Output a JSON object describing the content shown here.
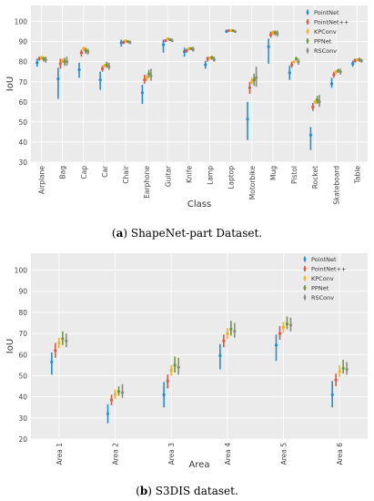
{
  "colors": {
    "background": "#ebebeb",
    "grid": "#ffffff",
    "PointNet": "#1f8fd6",
    "PointNet++": "#e8553e",
    "KPConv": "#f6b417",
    "PPNet": "#6a9a3a",
    "RSConv": "#8a8a8a"
  },
  "captions": [
    {
      "label": "a",
      "text": " ShapeNet-part Dataset."
    },
    {
      "label": "b",
      "text": " S3DIS dataset."
    }
  ],
  "chart_data": [
    {
      "type": "scatter",
      "title": "",
      "xlabel": "Class",
      "ylabel": "IoU",
      "ylim": [
        30,
        108
      ],
      "yticks": [
        30,
        40,
        50,
        60,
        70,
        80,
        90,
        100
      ],
      "grid": true,
      "legend_placement": "top-right",
      "categories": [
        "Airplane",
        "Bag",
        "Cap",
        "Car",
        "Chair",
        "Earphone",
        "Guitar",
        "Knife",
        "Lamp",
        "Laptop",
        "Motorbike",
        "Mug",
        "Pistol",
        "Rocket",
        "Skateboard",
        "Table"
      ],
      "series": [
        {
          "name": "PointNet",
          "values": [
            79.5,
            71.5,
            76.0,
            71.0,
            89.5,
            64.5,
            88.5,
            85.0,
            78.5,
            95.0,
            51.5,
            87.5,
            74.5,
            43.5,
            69.0,
            79.0
          ],
          "low": [
            77.5,
            61.5,
            72.0,
            66.0,
            87.5,
            59.0,
            84.5,
            82.5,
            76.5,
            94.5,
            41.0,
            79.0,
            71.0,
            36.0,
            67.0,
            77.5
          ],
          "high": [
            81.5,
            77.0,
            79.5,
            75.0,
            91.0,
            68.5,
            91.0,
            87.0,
            80.5,
            96.0,
            60.0,
            91.5,
            78.0,
            47.5,
            72.0,
            80.5
          ]
        },
        {
          "name": "PointNet++",
          "values": [
            81.5,
            79.0,
            84.5,
            76.5,
            89.5,
            71.0,
            90.5,
            85.5,
            81.5,
            95.5,
            67.0,
            93.5,
            78.5,
            57.5,
            73.5,
            80.5
          ],
          "low": [
            80.5,
            76.5,
            82.5,
            75.0,
            89.0,
            69.0,
            90.0,
            84.5,
            80.0,
            95.0,
            64.0,
            92.0,
            77.0,
            55.5,
            72.0,
            79.5
          ],
          "high": [
            82.5,
            81.5,
            86.0,
            78.0,
            90.5,
            73.5,
            91.0,
            86.5,
            82.5,
            96.0,
            70.0,
            95.0,
            80.0,
            59.5,
            75.0,
            81.5
          ]
        },
        {
          "name": "KPConv",
          "values": [
            82.0,
            80.5,
            86.5,
            78.0,
            90.5,
            72.0,
            91.5,
            86.5,
            82.0,
            95.5,
            70.5,
            94.5,
            80.0,
            60.0,
            75.0,
            81.0
          ],
          "low": [
            81.0,
            79.5,
            85.5,
            77.0,
            90.0,
            70.5,
            91.0,
            86.0,
            81.5,
            95.0,
            69.0,
            93.5,
            79.5,
            59.0,
            74.0,
            80.5
          ],
          "high": [
            83.0,
            81.5,
            87.5,
            79.0,
            91.0,
            73.5,
            92.0,
            87.0,
            82.5,
            96.0,
            72.0,
            95.5,
            80.5,
            61.0,
            76.0,
            81.5
          ]
        },
        {
          "name": "PPNet",
          "values": [
            81.5,
            80.0,
            85.5,
            78.5,
            90.0,
            74.0,
            91.0,
            86.5,
            82.0,
            95.5,
            71.0,
            94.5,
            81.5,
            61.0,
            75.5,
            81.0
          ],
          "low": [
            80.0,
            78.0,
            84.0,
            77.0,
            89.5,
            72.0,
            90.5,
            86.0,
            81.0,
            95.0,
            68.0,
            93.0,
            80.5,
            59.0,
            74.5,
            80.0
          ],
          "high": [
            82.5,
            82.0,
            87.0,
            80.0,
            90.5,
            76.0,
            91.5,
            87.0,
            83.0,
            96.0,
            74.0,
            95.5,
            82.5,
            63.0,
            76.5,
            82.0
          ]
        },
        {
          "name": "RSConv",
          "values": [
            81.0,
            80.0,
            85.0,
            77.5,
            89.5,
            73.0,
            90.5,
            86.0,
            81.0,
            95.0,
            72.0,
            94.0,
            80.0,
            60.0,
            75.0,
            80.5
          ],
          "low": [
            79.5,
            78.0,
            83.5,
            76.0,
            89.0,
            70.5,
            90.0,
            85.0,
            80.0,
            94.5,
            67.5,
            92.5,
            78.5,
            57.5,
            73.5,
            79.5
          ],
          "high": [
            82.5,
            82.5,
            86.5,
            79.5,
            90.5,
            76.5,
            91.5,
            87.5,
            82.5,
            95.5,
            77.5,
            95.5,
            81.5,
            63.5,
            76.5,
            81.5
          ]
        }
      ]
    },
    {
      "type": "scatter",
      "title": "",
      "xlabel": "Area",
      "ylabel": "IoU",
      "ylim": [
        20,
        108
      ],
      "yticks": [
        20,
        30,
        40,
        50,
        60,
        70,
        80,
        90,
        100
      ],
      "grid": true,
      "legend_placement": "top-right",
      "categories": [
        "Area 1",
        "Area 2",
        "Area 3",
        "Area 4",
        "Area 5",
        "Area 6"
      ],
      "series": [
        {
          "name": "PointNet",
          "values": [
            56.5,
            32.0,
            41.0,
            59.5,
            64.5,
            41.0
          ],
          "low": [
            50.5,
            27.5,
            35.0,
            53.0,
            57.0,
            35.0
          ],
          "high": [
            61.0,
            36.5,
            47.0,
            65.0,
            69.5,
            47.5
          ]
        },
        {
          "name": "PointNet++",
          "values": [
            62.0,
            38.5,
            47.5,
            66.5,
            70.0,
            48.0
          ],
          "low": [
            58.5,
            36.0,
            44.0,
            63.5,
            67.0,
            45.0
          ],
          "high": [
            65.5,
            41.0,
            50.5,
            69.5,
            73.5,
            51.0
          ]
        },
        {
          "name": "KPConv",
          "values": [
            65.5,
            41.0,
            52.5,
            70.0,
            73.0,
            52.0
          ],
          "low": [
            63.0,
            39.0,
            50.0,
            67.5,
            70.5,
            49.5
          ],
          "high": [
            68.0,
            43.5,
            55.0,
            72.5,
            75.5,
            55.0
          ]
        },
        {
          "name": "PPNet",
          "values": [
            67.5,
            42.5,
            55.0,
            72.0,
            74.5,
            53.5
          ],
          "low": [
            64.5,
            40.5,
            51.5,
            69.0,
            72.0,
            51.0
          ],
          "high": [
            71.0,
            45.0,
            59.0,
            76.0,
            78.0,
            57.5
          ]
        },
        {
          "name": "RSConv",
          "values": [
            66.5,
            42.0,
            54.0,
            71.0,
            74.0,
            53.0
          ],
          "low": [
            63.5,
            39.5,
            50.5,
            68.0,
            71.0,
            50.5
          ],
          "high": [
            70.0,
            46.0,
            58.5,
            75.0,
            77.5,
            56.5
          ]
        }
      ]
    }
  ]
}
